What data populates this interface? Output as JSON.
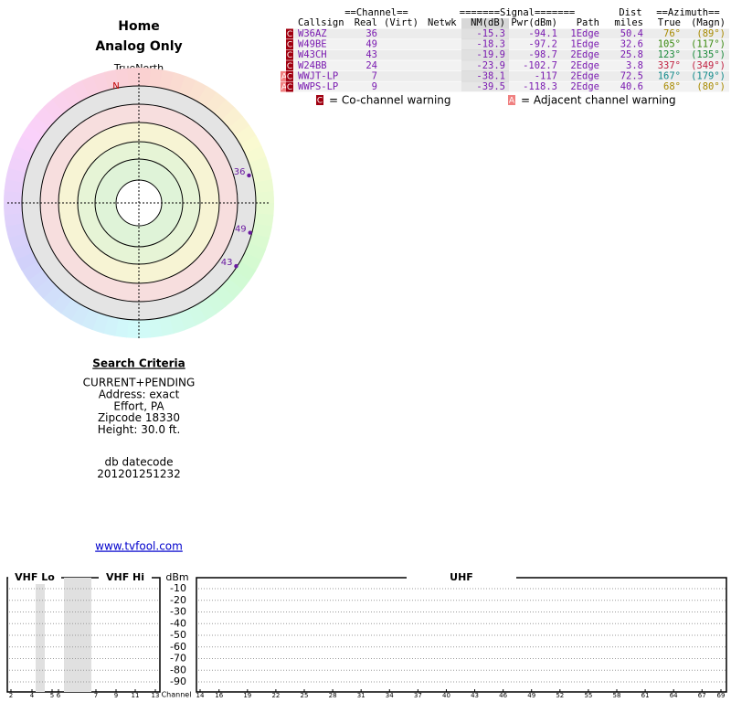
{
  "header": {
    "title": "Home",
    "subtitle": "Analog Only"
  },
  "polar": {
    "north_label": "TrueNorth",
    "n_label": "N",
    "markers": [
      {
        "label": "36",
        "azimuth": 76,
        "nm": -15.3
      },
      {
        "label": "49",
        "azimuth": 105,
        "nm": -18.3
      },
      {
        "label": "43",
        "azimuth": 123,
        "nm": -19.9
      }
    ]
  },
  "table": {
    "group_headers": [
      "==Channel==",
      "=======Signal=======",
      "Dist",
      "==Azimuth=="
    ],
    "columns": [
      "Callsign",
      "Real",
      "(Virt)",
      "Netwk",
      "NM(dB)",
      "Pwr(dBm)",
      "Path",
      "miles",
      "True",
      "(Magn)"
    ],
    "rows": [
      {
        "flags": [
          "C"
        ],
        "callsign": "W36AZ",
        "real": 36,
        "nm": -15.3,
        "pwr": -94.1,
        "path": "1Edge",
        "dist": 50.4,
        "true": "76°",
        "magn": "(89°)",
        "color": "#a88a00"
      },
      {
        "flags": [
          "C"
        ],
        "callsign": "W49BE",
        "real": 49,
        "nm": -18.3,
        "pwr": -97.2,
        "path": "1Edge",
        "dist": 32.6,
        "true": "105°",
        "magn": "(117°)",
        "color": "#3a8a10"
      },
      {
        "flags": [
          "C"
        ],
        "callsign": "W43CH",
        "real": 43,
        "nm": -19.9,
        "pwr": -98.7,
        "path": "2Edge",
        "dist": 25.8,
        "true": "123°",
        "magn": "(135°)",
        "color": "#1a8a3a"
      },
      {
        "flags": [
          "C"
        ],
        "callsign": "W24BB",
        "real": 24,
        "nm": -23.9,
        "pwr": -102.7,
        "path": "2Edge",
        "dist": 3.8,
        "true": "337°",
        "magn": "(349°)",
        "color": "#c02040"
      },
      {
        "flags": [
          "A",
          "C"
        ],
        "callsign": "WWJT-LP",
        "real": 7,
        "nm": -38.1,
        "pwr": -117.0,
        "path": "2Edge",
        "dist": 72.5,
        "true": "167°",
        "magn": "(179°)",
        "color": "#108a8a"
      },
      {
        "flags": [
          "A",
          "C"
        ],
        "callsign": "WWPS-LP",
        "real": 9,
        "nm": -39.5,
        "pwr": -118.3,
        "path": "2Edge",
        "dist": 40.6,
        "true": "68°",
        "magn": "(80°)",
        "color": "#a88a00"
      }
    ]
  },
  "legend": [
    {
      "flag": "C",
      "text": "= Co-channel warning"
    },
    {
      "flag": "A",
      "text": "= Adjacent channel warning"
    }
  ],
  "search": {
    "title": "Search Criteria",
    "lines": [
      "CURRENT+PENDING",
      "Address: exact",
      "Effort, PA",
      "Zipcode 18330",
      "Height: 30.0 ft."
    ],
    "datecode_label": "db datecode",
    "datecode": "201201251232",
    "link": "www.tvfool.com"
  },
  "spectrum": {
    "bands": [
      "VHF Lo",
      "VHF Hi",
      "UHF"
    ],
    "unit": "dBm",
    "yticks": [
      -10,
      -20,
      -30,
      -40,
      -50,
      -60,
      -70,
      -80,
      -90
    ],
    "axis_label": "Channel",
    "vhf_channels": [
      2,
      4,
      5,
      6,
      7,
      9,
      11,
      13
    ],
    "uhf_channels": [
      14,
      16,
      19,
      22,
      25,
      28,
      31,
      34,
      37,
      40,
      43,
      46,
      49,
      52,
      55,
      58,
      61,
      64,
      67,
      69
    ]
  }
}
